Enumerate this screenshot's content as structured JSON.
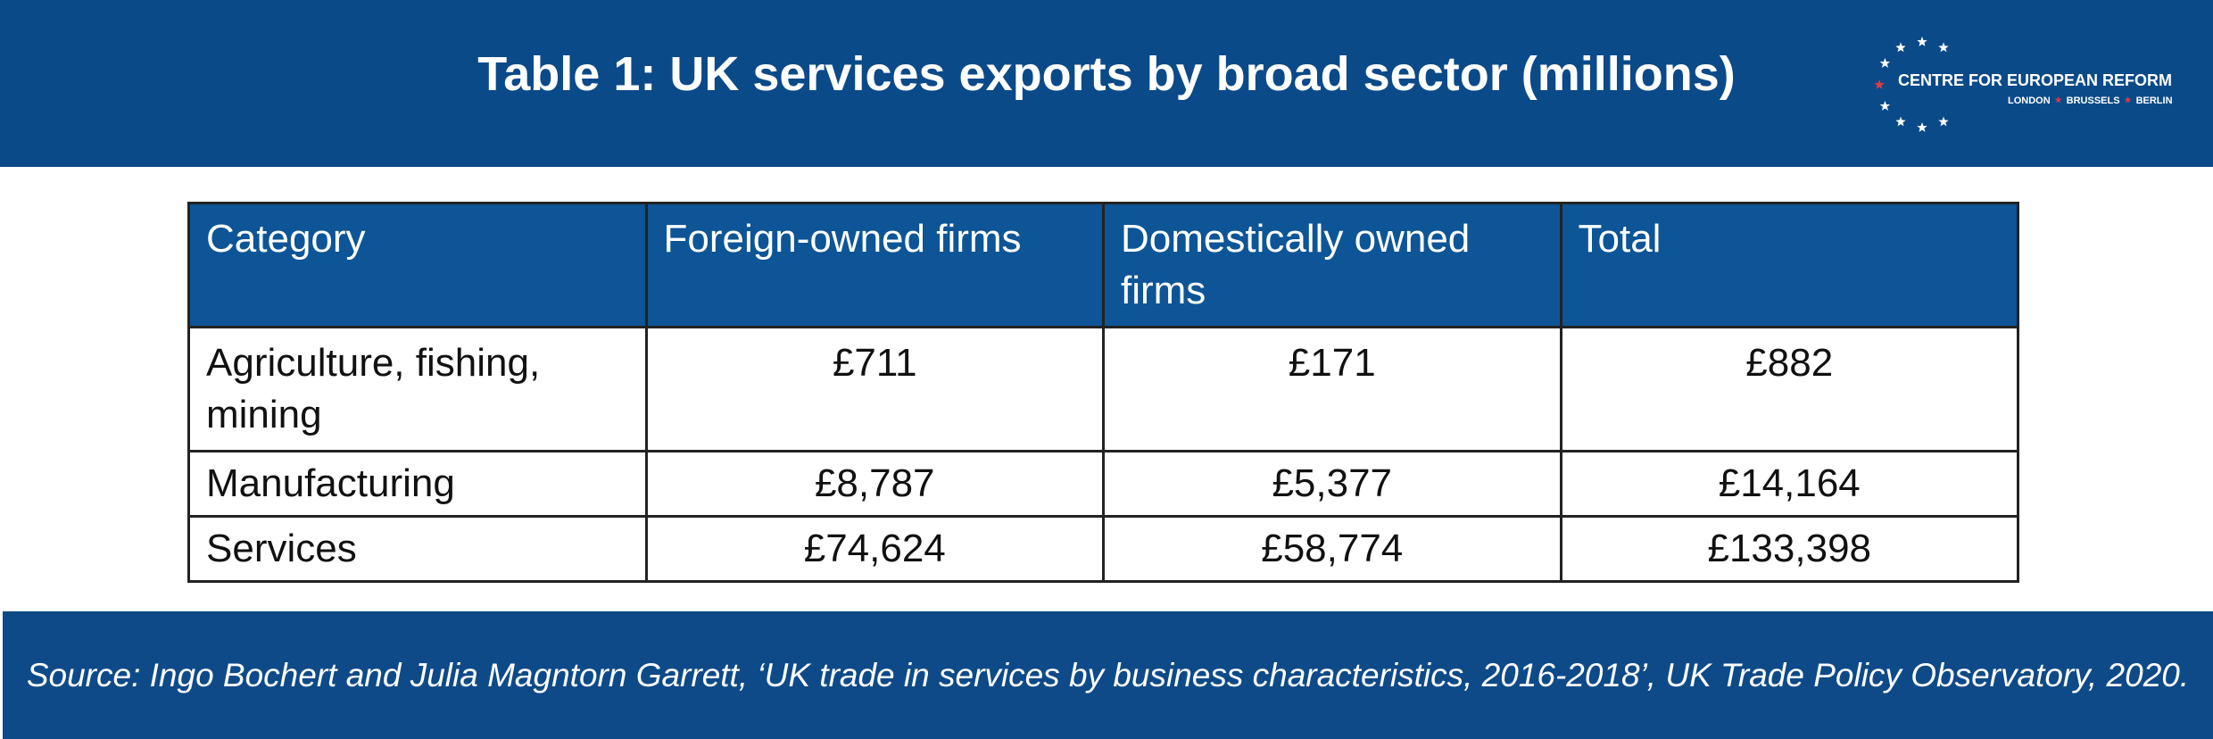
{
  "header": {
    "title": "Table 1: UK services exports by broad sector (millions)",
    "logo": {
      "name": "CENTRE FOR EUROPEAN REFORM",
      "cities": [
        "LONDON",
        "BRUSSELS",
        "BERLIN"
      ]
    }
  },
  "table": {
    "columns": [
      "Category",
      "Foreign-owned firms",
      "Domestically owned firms",
      "Total"
    ],
    "rows": [
      [
        "Agriculture, fishing, mining",
        "£711",
        "£171",
        "£882"
      ],
      [
        "Manufacturing",
        "£8,787",
        "£5,377",
        "£14,164"
      ],
      [
        "Services",
        "£74,624",
        "£58,774",
        "£133,398"
      ]
    ]
  },
  "footer": {
    "source": "Source: Ingo Bochert and Julia Magntorn Garrett, ‘UK trade in services by business characteristics, 2016-2018’, UK Trade Policy Observatory, 2020."
  }
}
